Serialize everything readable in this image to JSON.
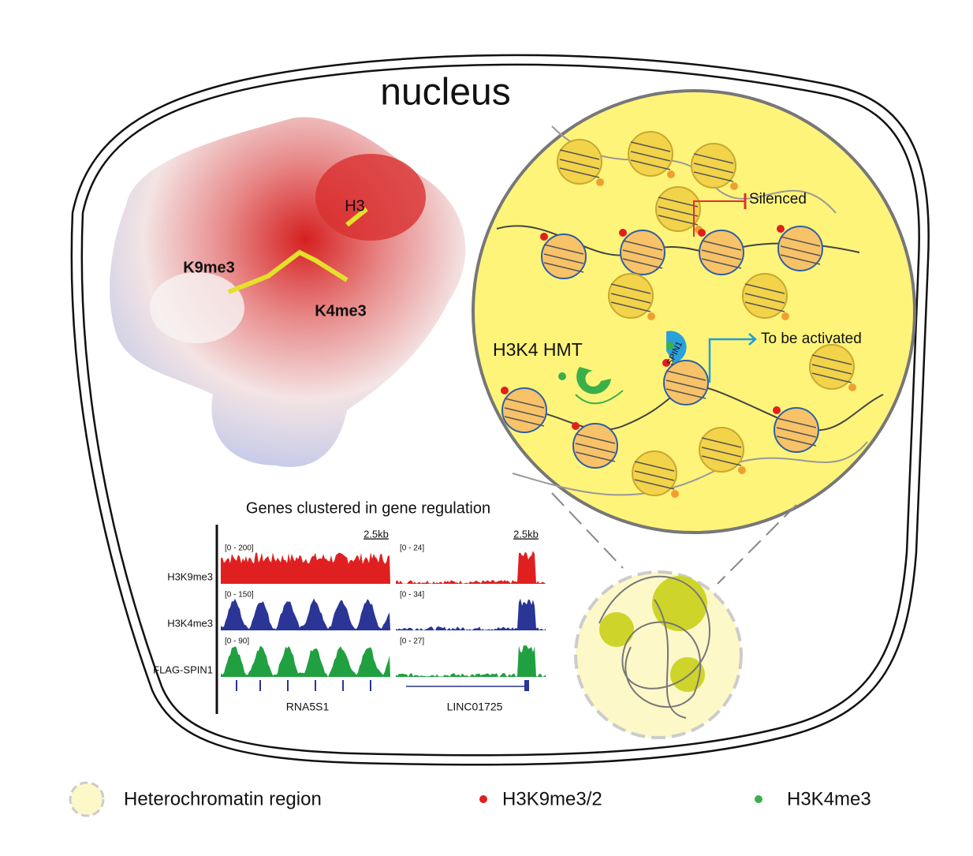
{
  "title": "nucleus",
  "structure": {
    "peptide": "H3",
    "site_a": "K9me3",
    "site_b": "K4me3"
  },
  "zoom": {
    "silenced": "Silenced",
    "activated": "To be activated",
    "enzyme": "H3K4 HMT",
    "reader": "SPIN1"
  },
  "browser": {
    "title": "Genes clustered in gene regulation",
    "scales": [
      "2.5kb",
      "2.5kb"
    ],
    "tracks": [
      {
        "name": "H3K9me3",
        "ranges": [
          "[0 - 200]",
          "[0 - 24]"
        ]
      },
      {
        "name": "H3K4me3",
        "ranges": [
          "[0 - 150]",
          "[0 - 34]"
        ]
      },
      {
        "name": "FLAG-SPIN1",
        "ranges": [
          "[0 - 90]",
          "[0 - 27]"
        ]
      }
    ],
    "genes": [
      "RNA5S1",
      "LINC01725"
    ]
  },
  "legend": [
    "Heterochromatin region",
    "H3K9me3/2",
    "H3K4me3"
  ]
}
